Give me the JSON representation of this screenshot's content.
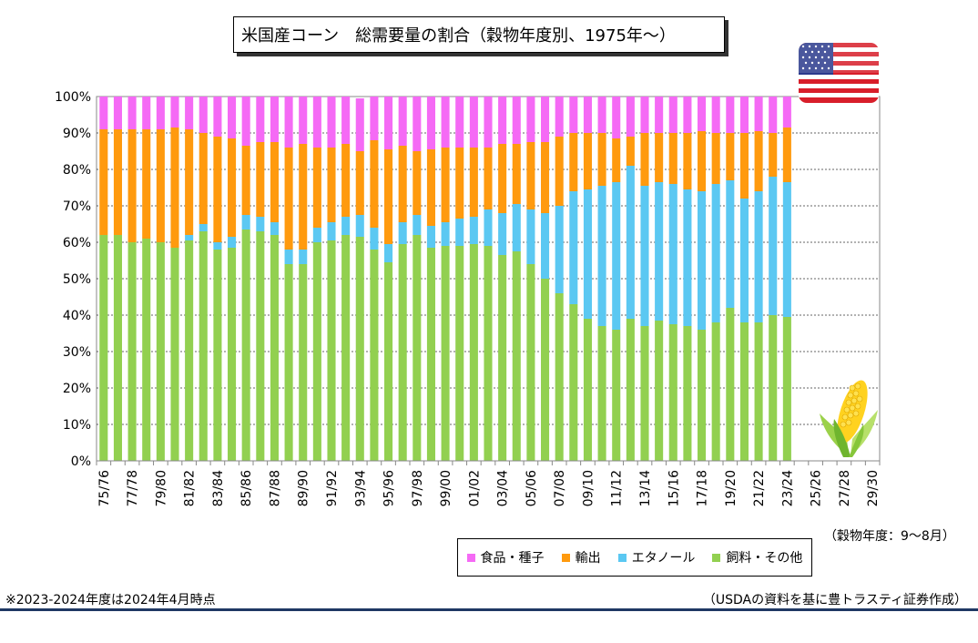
{
  "header": {
    "title": "米国産コーン　総需要量の割合（穀物年度別、1975年～）"
  },
  "notes": {
    "unit": "（穀物年度：9～8月）",
    "footnote_left": "※2023-2024年度は2024年4月時点",
    "source": "（USDAの資料を基に豊トラスティ証券作成）"
  },
  "colors": {
    "food_seed": "#f56af5",
    "exports": "#ff9a0e",
    "ethanol": "#5bc8f2",
    "feed_other": "#92d050"
  },
  "icons": {
    "flag": "us-flag-icon",
    "corn": "corn-icon"
  },
  "chart_data": {
    "type": "bar",
    "stacked": true,
    "title": "米国産コーン　総需要量の割合（穀物年度別、1975年～）",
    "xlabel": "（穀物年度：9～8月）",
    "ylabel": "",
    "ylim": [
      0,
      100
    ],
    "y_unit": "%",
    "yticks": [
      "0%",
      "10%",
      "20%",
      "30%",
      "40%",
      "50%",
      "60%",
      "70%",
      "80%",
      "90%",
      "100%"
    ],
    "grid": "horizontal dashed",
    "legend_position": "bottom-right",
    "categories": [
      "75/76",
      "76/77",
      "77/78",
      "78/79",
      "79/80",
      "80/81",
      "81/82",
      "82/83",
      "83/84",
      "84/85",
      "85/86",
      "86/87",
      "87/88",
      "88/89",
      "89/90",
      "90/91",
      "91/92",
      "92/93",
      "93/94",
      "94/95",
      "95/96",
      "96/97",
      "97/98",
      "98/99",
      "99/00",
      "00/01",
      "01/02",
      "02/03",
      "03/04",
      "04/05",
      "05/06",
      "06/07",
      "07/08",
      "08/09",
      "09/10",
      "10/11",
      "11/12",
      "12/13",
      "13/14",
      "14/15",
      "15/16",
      "16/17",
      "17/18",
      "18/19",
      "19/20",
      "20/21",
      "21/22",
      "22/23",
      "23/24",
      "24/25",
      "25/26",
      "26/27",
      "27/28",
      "28/29",
      "29/30"
    ],
    "tick_labels": [
      "75/76",
      "77/78",
      "79/80",
      "81/82",
      "83/84",
      "85/86",
      "87/88",
      "89/90",
      "91/92",
      "93/94",
      "95/96",
      "97/98",
      "99/00",
      "01/02",
      "03/04",
      "05/06",
      "07/08",
      "09/10",
      "11/12",
      "13/14",
      "15/16",
      "17/18",
      "19/20",
      "21/22",
      "23/24",
      "25/26",
      "27/28",
      "29/30"
    ],
    "series": [
      {
        "name": "飼料・その他",
        "color": "#92d050",
        "values": [
          62,
          62,
          60,
          61,
          60,
          58.5,
          60.5,
          63,
          58,
          58.5,
          63.5,
          63,
          62,
          54,
          54,
          60,
          60.5,
          62,
          61.5,
          58,
          54.5,
          59.5,
          62,
          58.5,
          59,
          59,
          59.5,
          59,
          56.5,
          57.5,
          54,
          50,
          46,
          43,
          39,
          37,
          36,
          39,
          37,
          38.5,
          37.5,
          37,
          36,
          38,
          42,
          38,
          38,
          40,
          39.5,
          null,
          null,
          null,
          null,
          null,
          null
        ]
      },
      {
        "name": "エタノール",
        "color": "#5bc8f2",
        "values": [
          0,
          0,
          0,
          0,
          0,
          0,
          1.5,
          2,
          2,
          3,
          4,
          4,
          3.5,
          4,
          4,
          4,
          5,
          5,
          6,
          6,
          5,
          6,
          5.5,
          6,
          6.5,
          7.5,
          7.5,
          10,
          11.5,
          13,
          15,
          18,
          24,
          31,
          35.5,
          38.5,
          40.5,
          42,
          38.5,
          38,
          38.5,
          37.5,
          38,
          38,
          35,
          34,
          36,
          38,
          37,
          null,
          null,
          null,
          null,
          null,
          null
        ]
      },
      {
        "name": "輸出",
        "color": "#ff9a0e",
        "values": [
          29,
          29,
          31,
          30,
          31,
          33,
          29,
          25,
          29,
          27,
          19,
          20.5,
          22,
          28,
          29,
          22,
          20.5,
          20,
          17.5,
          24,
          26,
          21,
          17.5,
          21,
          20.5,
          19.5,
          19,
          17,
          19,
          16.5,
          18.5,
          19.5,
          19,
          16,
          15.5,
          14.5,
          12,
          8,
          14.5,
          13.5,
          14,
          15.5,
          16.5,
          14,
          13,
          18,
          16.5,
          12,
          15,
          null,
          null,
          null,
          null,
          null,
          null
        ]
      },
      {
        "name": "食品・種子",
        "color": "#f56af5",
        "values": [
          9,
          9,
          9,
          9,
          9,
          8.5,
          9,
          10,
          11,
          11.5,
          13.5,
          12.5,
          12.5,
          14,
          13,
          14,
          14,
          13,
          14.5,
          12,
          14.5,
          13.5,
          15,
          14.5,
          14,
          14,
          14,
          14,
          13,
          13,
          12.5,
          12.5,
          11,
          10,
          10,
          10,
          11.5,
          11,
          10,
          10,
          10,
          10,
          9.5,
          10,
          10,
          10,
          9.5,
          10,
          8.5,
          null,
          null,
          null,
          null,
          null,
          null
        ]
      }
    ],
    "legend": [
      "食品・種子",
      "輸出",
      "エタノール",
      "飼料・その他"
    ]
  }
}
